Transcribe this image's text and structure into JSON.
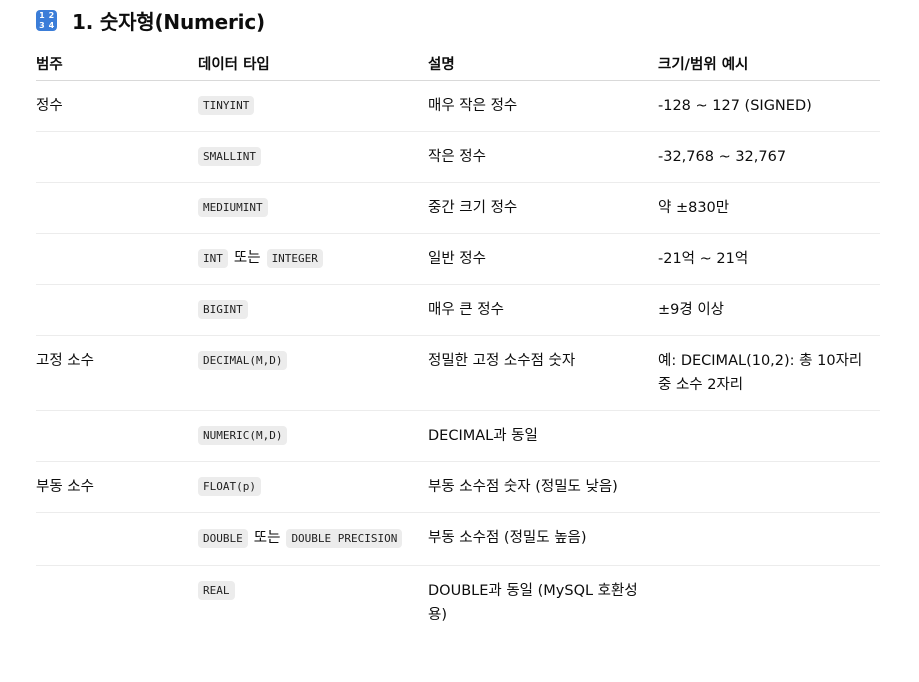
{
  "section": {
    "icon": "input-numbers-icon",
    "icon_glyphs": [
      "1",
      "2",
      "3",
      "4"
    ],
    "title": "1. 숫자형(Numeric)"
  },
  "table": {
    "headers": [
      "범주",
      "데이터 타입",
      "설명",
      "크기/범위 예시"
    ],
    "connector": "또는",
    "rows": [
      {
        "category": "정수",
        "type1": "TINYINT",
        "type2": "",
        "description": "매우 작은 정수",
        "example": "-128 ~ 127 (SIGNED)"
      },
      {
        "category": "",
        "type1": "SMALLINT",
        "type2": "",
        "description": "작은 정수",
        "example": "-32,768 ~ 32,767"
      },
      {
        "category": "",
        "type1": "MEDIUMINT",
        "type2": "",
        "description": "중간 크기 정수",
        "example": "약 ±830만"
      },
      {
        "category": "",
        "type1": "INT",
        "type2": "INTEGER",
        "description": "일반 정수",
        "example": "-21억 ~ 21억"
      },
      {
        "category": "",
        "type1": "BIGINT",
        "type2": "",
        "description": "매우 큰 정수",
        "example": "±9경 이상"
      },
      {
        "category": "고정 소수",
        "type1": "DECIMAL(M,D)",
        "type2": "",
        "description": "정밀한 고정 소수점 숫자",
        "example": "예: DECIMAL(10,2): 총 10자리 중 소수 2자리"
      },
      {
        "category": "",
        "type1": "NUMERIC(M,D)",
        "type2": "",
        "description": "DECIMAL과 동일",
        "example": ""
      },
      {
        "category": "부동 소수",
        "type1": "FLOAT(p)",
        "type2": "",
        "description": "부동 소수점 숫자 (정밀도 낮음)",
        "example": ""
      },
      {
        "category": "",
        "type1": "DOUBLE",
        "type2": "DOUBLE PRECISION",
        "description": "부동 소수점 (정밀도 높음)",
        "example": ""
      },
      {
        "category": "",
        "type1": "REAL",
        "type2": "",
        "description": "DOUBLE과 동일 (MySQL 호환성용)",
        "example": ""
      }
    ]
  }
}
